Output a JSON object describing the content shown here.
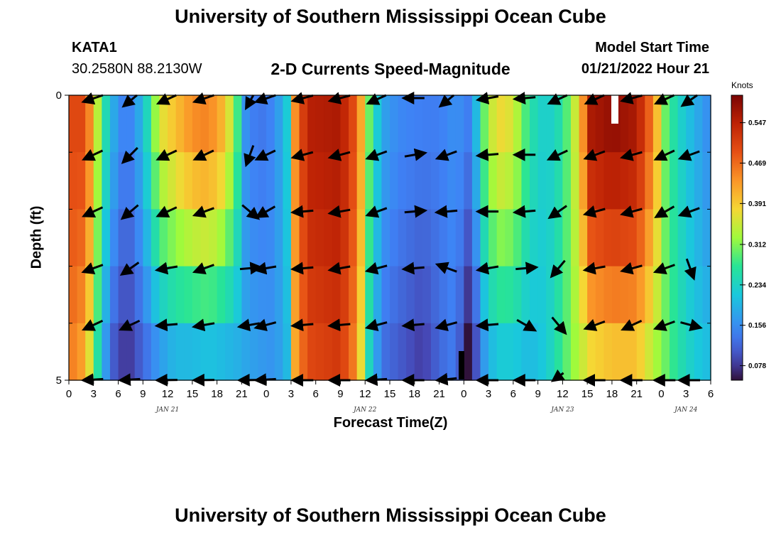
{
  "page": {
    "title_top": "University of Southern Mississippi Ocean Cube",
    "title_bottom": "University of Southern Mississippi Ocean Cube",
    "station_id": "KATA1",
    "station_coords": "30.2580N  88.2130W",
    "chart_title": "2-D Currents Speed-Magnitude",
    "model_start_label": "Model Start Time",
    "model_start_value": "01/21/2022 Hour 21"
  },
  "chart_data": {
    "type": "heatmap",
    "title": "2-D Currents Speed-Magnitude",
    "xlabel": "Forecast Time(Z)",
    "ylabel": "Depth (ft)",
    "x_ticks": [
      "0",
      "3",
      "6",
      "9",
      "12",
      "15",
      "18",
      "21",
      "0",
      "3",
      "6",
      "9",
      "12",
      "15",
      "18",
      "21",
      "0",
      "3",
      "6",
      "9",
      "12",
      "15",
      "18",
      "21",
      "0",
      "3",
      "6"
    ],
    "x_hours_range": [
      0,
      78
    ],
    "date_labels": [
      {
        "label": "JAN 21",
        "hour": 12
      },
      {
        "label": "JAN 22",
        "hour": 36
      },
      {
        "label": "JAN 23",
        "hour": 60
      },
      {
        "label": "JAN 24",
        "hour": 75
      }
    ],
    "y_ticks": [
      "0",
      "5"
    ],
    "ylim": [
      0,
      5
    ],
    "depth_rows": 5,
    "colorbar": {
      "unit": "Knots",
      "ticks": [
        "0.547",
        "0.469",
        "0.391",
        "0.312",
        "0.234",
        "0.156",
        "0.078"
      ],
      "tick_values": [
        0.547,
        0.469,
        0.391,
        0.312,
        0.234,
        0.156,
        0.078
      ],
      "range": [
        0.05,
        0.6
      ]
    },
    "speed_profile": [
      {
        "hour": 0,
        "surface": 0.5,
        "bottom": 0.46
      },
      {
        "hour": 2,
        "surface": 0.5,
        "bottom": 0.42
      },
      {
        "hour": 3.5,
        "surface": 0.34,
        "bottom": 0.26
      },
      {
        "hour": 5,
        "surface": 0.2,
        "bottom": 0.12
      },
      {
        "hour": 7,
        "surface": 0.13,
        "bottom": 0.07
      },
      {
        "hour": 9,
        "surface": 0.2,
        "bottom": 0.12
      },
      {
        "hour": 11,
        "surface": 0.36,
        "bottom": 0.17
      },
      {
        "hour": 13,
        "surface": 0.4,
        "bottom": 0.2
      },
      {
        "hour": 15,
        "surface": 0.44,
        "bottom": 0.2
      },
      {
        "hour": 17,
        "surface": 0.45,
        "bottom": 0.21
      },
      {
        "hour": 19,
        "surface": 0.4,
        "bottom": 0.2
      },
      {
        "hour": 20.5,
        "surface": 0.28,
        "bottom": 0.19
      },
      {
        "hour": 21.5,
        "surface": 0.16,
        "bottom": 0.18
      },
      {
        "hour": 23,
        "surface": 0.13,
        "bottom": 0.17
      },
      {
        "hour": 25,
        "surface": 0.15,
        "bottom": 0.16
      },
      {
        "hour": 26.5,
        "surface": 0.22,
        "bottom": 0.2
      },
      {
        "hour": 27.5,
        "surface": 0.44,
        "bottom": 0.42
      },
      {
        "hour": 29,
        "surface": 0.55,
        "bottom": 0.5
      },
      {
        "hour": 33,
        "surface": 0.56,
        "bottom": 0.52
      },
      {
        "hour": 35,
        "surface": 0.48,
        "bottom": 0.44
      },
      {
        "hour": 36.5,
        "surface": 0.3,
        "bottom": 0.24
      },
      {
        "hour": 38,
        "surface": 0.18,
        "bottom": 0.13
      },
      {
        "hour": 40,
        "surface": 0.15,
        "bottom": 0.11
      },
      {
        "hour": 43,
        "surface": 0.14,
        "bottom": 0.08
      },
      {
        "hour": 45,
        "surface": 0.14,
        "bottom": 0.12
      },
      {
        "hour": 47,
        "surface": 0.16,
        "bottom": 0.14
      },
      {
        "hour": 48.5,
        "surface": 0.14,
        "bottom": 0.05
      },
      {
        "hour": 49.5,
        "surface": 0.2,
        "bottom": 0.1
      },
      {
        "hour": 50.5,
        "surface": 0.3,
        "bottom": 0.17
      },
      {
        "hour": 52,
        "surface": 0.38,
        "bottom": 0.22
      },
      {
        "hour": 54,
        "surface": 0.36,
        "bottom": 0.22
      },
      {
        "hour": 56,
        "surface": 0.26,
        "bottom": 0.2
      },
      {
        "hour": 58,
        "surface": 0.22,
        "bottom": 0.22
      },
      {
        "hour": 60,
        "surface": 0.26,
        "bottom": 0.28
      },
      {
        "hour": 62,
        "surface": 0.38,
        "bottom": 0.34
      },
      {
        "hour": 63.5,
        "surface": 0.56,
        "bottom": 0.38
      },
      {
        "hour": 66,
        "surface": 0.58,
        "bottom": 0.4
      },
      {
        "hour": 69,
        "surface": 0.56,
        "bottom": 0.4
      },
      {
        "hour": 71,
        "surface": 0.45,
        "bottom": 0.34
      },
      {
        "hour": 72.5,
        "surface": 0.3,
        "bottom": 0.3
      },
      {
        "hour": 74,
        "surface": 0.24,
        "bottom": 0.26
      },
      {
        "hour": 76,
        "surface": 0.19,
        "bottom": 0.22
      },
      {
        "hour": 78,
        "surface": 0.15,
        "bottom": 0.2
      }
    ],
    "vector_columns_hours": [
      3,
      7.5,
      12,
      16.5,
      22,
      24,
      28.5,
      33,
      37.5,
      42,
      46,
      51,
      55.5,
      59.5,
      64,
      68.5,
      72.5,
      75.5
    ],
    "vector_direction_deg": [
      [
        200,
        230,
        210,
        200,
        250,
        200,
        195,
        195,
        210,
        180,
        230,
        190,
        185,
        210,
        210,
        195,
        210,
        225
      ],
      [
        205,
        225,
        205,
        205,
        250,
        205,
        195,
        195,
        200,
        10,
        200,
        185,
        180,
        205,
        200,
        195,
        205,
        200
      ],
      [
        205,
        220,
        205,
        200,
        320,
        210,
        185,
        190,
        200,
        5,
        185,
        180,
        185,
        215,
        195,
        195,
        210,
        200
      ],
      [
        200,
        215,
        190,
        200,
        5,
        190,
        185,
        190,
        195,
        185,
        160,
        190,
        5,
        230,
        190,
        195,
        200,
        290
      ],
      [
        205,
        205,
        185,
        190,
        190,
        195,
        185,
        185,
        195,
        185,
        195,
        185,
        330,
        310,
        200,
        205,
        200,
        345
      ],
      [
        195,
        195,
        190,
        190,
        190,
        195,
        185,
        185,
        195,
        185,
        200,
        185,
        185,
        240,
        180,
        180,
        180,
        180
      ]
    ]
  }
}
